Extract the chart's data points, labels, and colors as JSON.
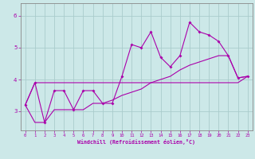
{
  "xlabel": "Windchill (Refroidissement éolien,°C)",
  "background_color": "#cce8e8",
  "grid_color": "#aacccc",
  "line_color": "#aa00aa",
  "x_data": [
    0,
    1,
    2,
    3,
    4,
    5,
    6,
    7,
    8,
    9,
    10,
    11,
    12,
    13,
    14,
    15,
    16,
    17,
    18,
    19,
    20,
    21,
    22,
    23
  ],
  "line1": [
    3.2,
    3.9,
    2.65,
    3.65,
    3.65,
    3.05,
    3.65,
    3.65,
    3.25,
    3.25,
    4.1,
    5.1,
    5.0,
    5.5,
    4.7,
    4.4,
    4.75,
    5.8,
    5.5,
    5.4,
    5.2,
    4.75,
    4.05,
    4.1
  ],
  "line2": [
    3.2,
    3.9,
    3.9,
    3.9,
    3.9,
    3.9,
    3.9,
    3.9,
    3.9,
    3.9,
    3.9,
    3.9,
    3.9,
    3.9,
    3.9,
    3.9,
    3.9,
    3.9,
    3.9,
    3.9,
    3.9,
    3.9,
    3.9,
    4.1
  ],
  "line3": [
    3.2,
    2.65,
    2.65,
    3.05,
    3.05,
    3.05,
    3.05,
    3.25,
    3.25,
    3.35,
    3.5,
    3.6,
    3.7,
    3.9,
    4.0,
    4.1,
    4.3,
    4.45,
    4.55,
    4.65,
    4.75,
    4.75,
    4.05,
    4.1
  ],
  "xlim": [
    -0.5,
    23.5
  ],
  "ylim": [
    2.4,
    6.4
  ],
  "yticks": [
    3,
    4,
    5,
    6
  ],
  "xticks": [
    0,
    1,
    2,
    3,
    4,
    5,
    6,
    7,
    8,
    9,
    10,
    11,
    12,
    13,
    14,
    15,
    16,
    17,
    18,
    19,
    20,
    21,
    22,
    23
  ],
  "marker_indices": [
    0,
    1,
    2,
    3,
    4,
    5,
    6,
    7,
    8,
    9,
    10,
    11,
    12,
    13,
    14,
    15,
    16,
    17,
    18,
    19,
    20,
    21,
    22,
    23
  ]
}
